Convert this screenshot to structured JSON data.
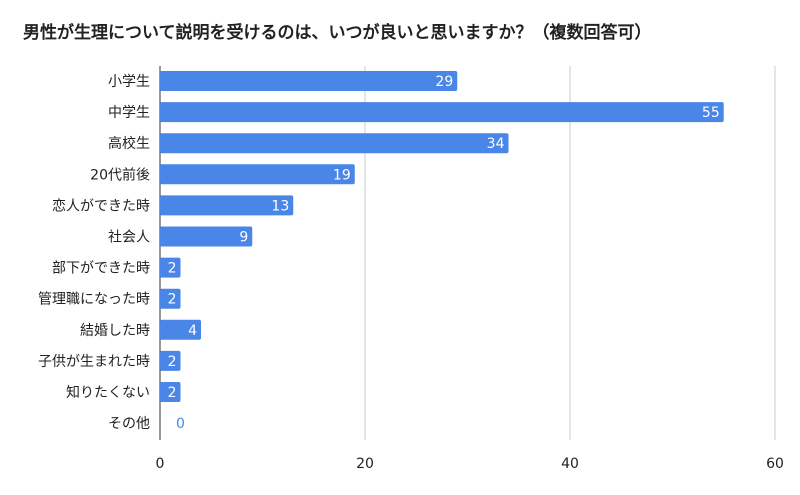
{
  "chart_data": {
    "type": "bar",
    "orientation": "horizontal",
    "title": "男性が生理について説明を受けるのは、いつが良いと思いますか？（複数回答可）",
    "categories": [
      "小学生",
      "中学生",
      "高校生",
      "20代前後",
      "恋人ができた時",
      "社会人",
      "部下ができた時",
      "管理職になった時",
      "結婚した時",
      "子供が生まれた時",
      "知りたくない",
      "その他"
    ],
    "values": [
      29,
      55,
      34,
      19,
      13,
      9,
      2,
      2,
      4,
      2,
      2,
      0
    ],
    "xlim": [
      0,
      60
    ],
    "x_ticks": [
      0,
      20,
      40,
      60
    ],
    "grid": true,
    "bar_color": "#4a86e8",
    "value_label_color_inside": "#ffffff",
    "value_label_color_outside": "#4a86e8",
    "legend": "none"
  }
}
